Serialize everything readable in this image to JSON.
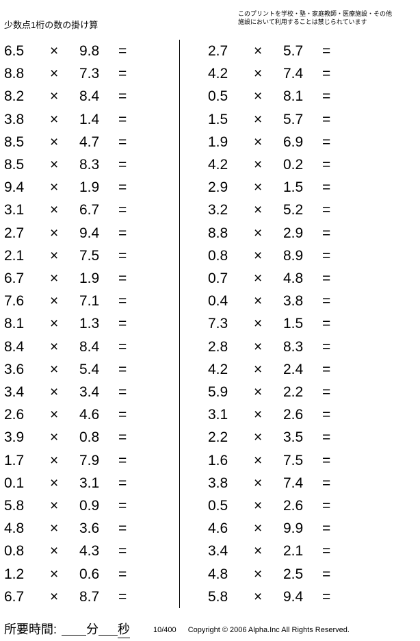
{
  "title": "少数点1桁の数の掛け算",
  "notice": "このプリントを学校・塾・家庭教師・医療施設・その他\n施設において利用することは禁じられています",
  "operator": "×",
  "equals": "=",
  "left_problems": [
    [
      "6.5",
      "9.8"
    ],
    [
      "8.8",
      "7.3"
    ],
    [
      "8.2",
      "8.4"
    ],
    [
      "3.8",
      "1.4"
    ],
    [
      "8.5",
      "4.7"
    ],
    [
      "8.5",
      "8.3"
    ],
    [
      "9.4",
      "1.9"
    ],
    [
      "3.1",
      "6.7"
    ],
    [
      "2.7",
      "9.4"
    ],
    [
      "2.1",
      "7.5"
    ],
    [
      "6.7",
      "1.9"
    ],
    [
      "7.6",
      "7.1"
    ],
    [
      "8.1",
      "1.3"
    ],
    [
      "8.4",
      "8.4"
    ],
    [
      "3.6",
      "5.4"
    ],
    [
      "3.4",
      "3.4"
    ],
    [
      "2.6",
      "4.6"
    ],
    [
      "3.9",
      "0.8"
    ],
    [
      "1.7",
      "7.9"
    ],
    [
      "0.1",
      "3.1"
    ],
    [
      "5.8",
      "0.9"
    ],
    [
      "4.8",
      "3.6"
    ],
    [
      "0.8",
      "4.3"
    ],
    [
      "1.2",
      "0.6"
    ],
    [
      "6.7",
      "8.7"
    ]
  ],
  "right_problems": [
    [
      "2.7",
      "5.7"
    ],
    [
      "4.2",
      "7.4"
    ],
    [
      "0.5",
      "8.1"
    ],
    [
      "1.5",
      "5.7"
    ],
    [
      "1.9",
      "6.9"
    ],
    [
      "4.2",
      "0.2"
    ],
    [
      "2.9",
      "1.5"
    ],
    [
      "3.2",
      "5.2"
    ],
    [
      "8.8",
      "2.9"
    ],
    [
      "0.8",
      "8.9"
    ],
    [
      "0.7",
      "4.8"
    ],
    [
      "0.4",
      "3.8"
    ],
    [
      "7.3",
      "1.5"
    ],
    [
      "2.8",
      "8.3"
    ],
    [
      "4.2",
      "2.4"
    ],
    [
      "5.9",
      "2.2"
    ],
    [
      "3.1",
      "2.6"
    ],
    [
      "2.2",
      "3.5"
    ],
    [
      "1.6",
      "7.5"
    ],
    [
      "3.8",
      "7.4"
    ],
    [
      "0.5",
      "2.6"
    ],
    [
      "4.6",
      "9.9"
    ],
    [
      "3.4",
      "2.1"
    ],
    [
      "4.8",
      "2.5"
    ],
    [
      "5.8",
      "9.4"
    ]
  ],
  "footer": {
    "time_label": "所要時間:",
    "minutes": "分",
    "seconds": "秒",
    "page": "10/400",
    "copyright": "Copyright © 2006 Alpha.Inc All Rights Reserved."
  }
}
